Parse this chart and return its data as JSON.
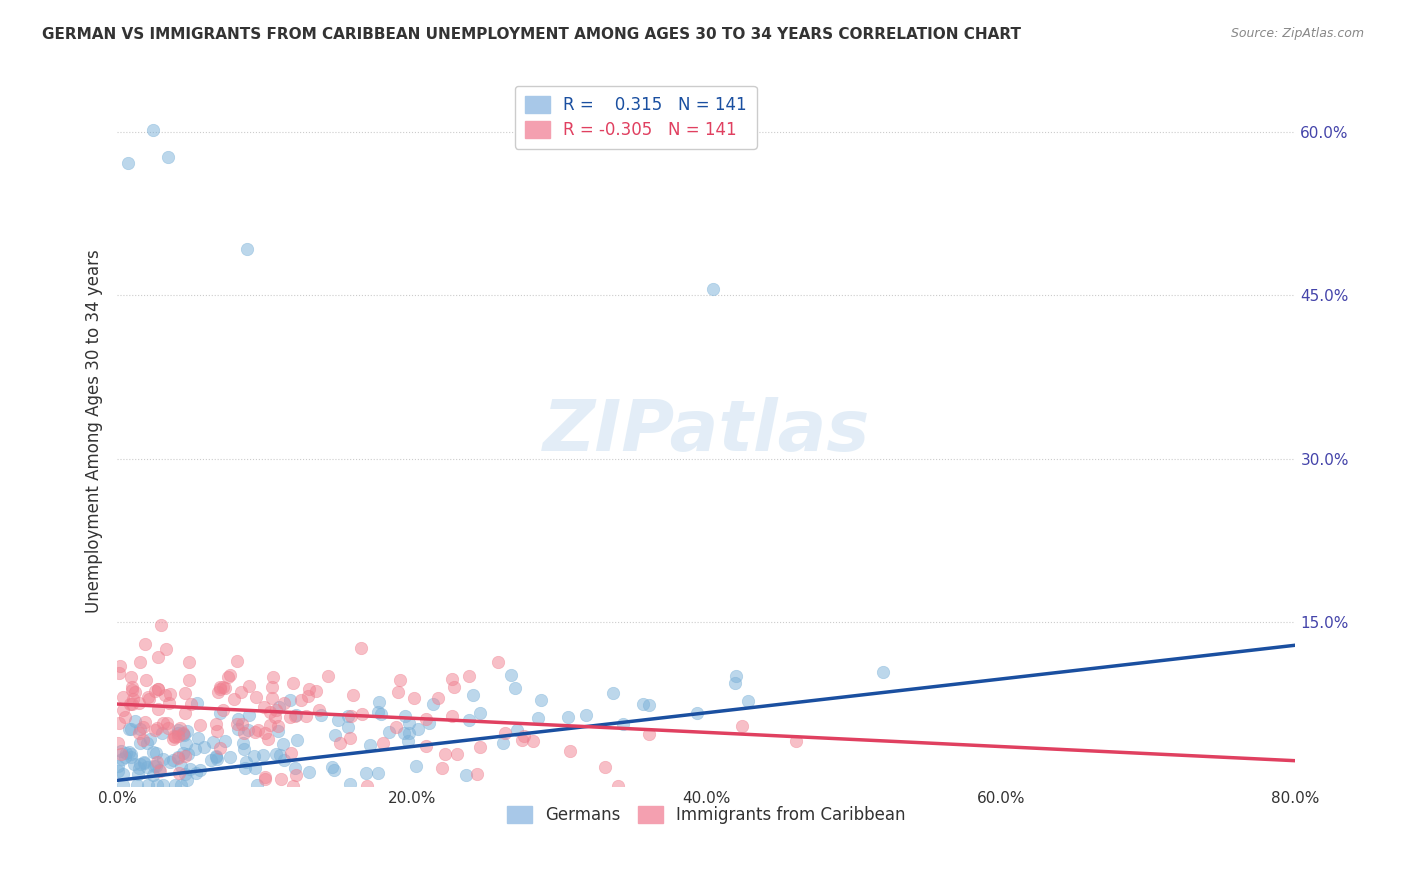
{
  "title": "GERMAN VS IMMIGRANTS FROM CARIBBEAN UNEMPLOYMENT AMONG AGES 30 TO 34 YEARS CORRELATION CHART",
  "source": "Source: ZipAtlas.com",
  "xlabel": "",
  "ylabel": "Unemployment Among Ages 30 to 34 years",
  "xlim": [
    0.0,
    0.8
  ],
  "ylim": [
    0.0,
    0.65
  ],
  "xticks": [
    0.0,
    0.2,
    0.4,
    0.6,
    0.8
  ],
  "xticklabels": [
    "0.0%",
    "20.0%",
    "40.0%",
    "60.0%",
    "80.0%"
  ],
  "ytick_positions": [
    0.15,
    0.3,
    0.45,
    0.6
  ],
  "yticklabels": [
    "15.0%",
    "30.0%",
    "45.0%",
    "60.0%"
  ],
  "legend_entries": [
    {
      "label": "Germans",
      "color": "#a8c8e8",
      "R": 0.315,
      "N": 141
    },
    {
      "label": "Immigrants from Caribbean",
      "color": "#f4a0b0",
      "R": -0.305,
      "N": 141
    }
  ],
  "german_color": "#7ab0d8",
  "caribbean_color": "#f08090",
  "german_line_color": "#1a4fa0",
  "caribbean_line_color": "#e04060",
  "watermark": "ZIPatlas",
  "background_color": "#ffffff",
  "grid_color": "#cccccc",
  "title_color": "#333333",
  "axis_label_color": "#4444aa",
  "scatter_alpha": 0.5,
  "scatter_size": 80,
  "german_R": 0.315,
  "german_N": 141,
  "caribbean_R": -0.305,
  "caribbean_N": 141
}
